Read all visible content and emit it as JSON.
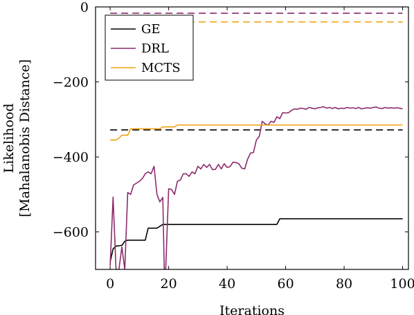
{
  "chart_data": {
    "type": "line",
    "title": "",
    "xlabel": "Iterations",
    "ylabel_lines": [
      "Likelihood",
      "[Mahalanobis Distance]"
    ],
    "xlim": [
      -5,
      102
    ],
    "ylim": [
      -700,
      0
    ],
    "xticks": [
      0,
      20,
      40,
      60,
      80,
      100
    ],
    "yticks": [
      0,
      -200,
      -400,
      -600
    ],
    "ytick_labels": [
      "0",
      "−200",
      "−400",
      "−600"
    ],
    "legend": {
      "position": "top-left"
    },
    "series": [
      {
        "name": "GE",
        "color": "#000000",
        "points": [
          [
            0,
            -680
          ],
          [
            1,
            -645
          ],
          [
            2,
            -638
          ],
          [
            4,
            -636
          ],
          [
            5,
            -625
          ],
          [
            6,
            -622
          ],
          [
            12,
            -622
          ],
          [
            13,
            -590
          ],
          [
            16,
            -590
          ],
          [
            17,
            -585
          ],
          [
            18,
            -580
          ],
          [
            57,
            -580
          ],
          [
            58,
            -565
          ],
          [
            100,
            -565
          ]
        ]
      },
      {
        "name": "DRL",
        "color": "#8b2a6b",
        "points": [
          [
            0,
            -690
          ],
          [
            1,
            -507
          ],
          [
            2,
            -700
          ],
          [
            3,
            -700
          ],
          [
            4,
            -640
          ],
          [
            5,
            -700
          ],
          [
            6,
            -495
          ],
          [
            7,
            -500
          ],
          [
            8,
            -475
          ],
          [
            9,
            -470
          ],
          [
            10,
            -465
          ],
          [
            11,
            -458
          ],
          [
            12,
            -445
          ],
          [
            13,
            -440
          ],
          [
            14,
            -445
          ],
          [
            15,
            -425
          ],
          [
            16,
            -500
          ],
          [
            17,
            -520
          ],
          [
            18,
            -508
          ],
          [
            18.5,
            -700
          ],
          [
            19,
            -700
          ],
          [
            20,
            -485
          ],
          [
            21,
            -487
          ],
          [
            22,
            -500
          ],
          [
            23,
            -465
          ],
          [
            24,
            -462
          ],
          [
            25,
            -445
          ],
          [
            26,
            -445
          ],
          [
            27,
            -452
          ],
          [
            28,
            -440
          ],
          [
            29,
            -445
          ],
          [
            30,
            -425
          ],
          [
            31,
            -432
          ],
          [
            32,
            -420
          ],
          [
            33,
            -428
          ],
          [
            34,
            -420
          ],
          [
            35,
            -434
          ],
          [
            36,
            -433
          ],
          [
            37,
            -420
          ],
          [
            38,
            -432
          ],
          [
            39,
            -418
          ],
          [
            40,
            -428
          ],
          [
            41,
            -426
          ],
          [
            42,
            -414
          ],
          [
            43,
            -415
          ],
          [
            44,
            -418
          ],
          [
            45,
            -430
          ],
          [
            46,
            -432
          ],
          [
            47,
            -406
          ],
          [
            48,
            -390
          ],
          [
            49,
            -388
          ],
          [
            50,
            -355
          ],
          [
            51,
            -345
          ],
          [
            52,
            -305
          ],
          [
            53,
            -312
          ],
          [
            54,
            -315
          ],
          [
            55,
            -305
          ],
          [
            56,
            -308
          ],
          [
            57,
            -293
          ],
          [
            58,
            -298
          ],
          [
            59,
            -282
          ],
          [
            60,
            -283
          ],
          [
            61,
            -282
          ],
          [
            62,
            -276
          ],
          [
            63,
            -272
          ],
          [
            64,
            -273
          ],
          [
            65,
            -270
          ],
          [
            66,
            -271
          ],
          [
            67,
            -273
          ],
          [
            68,
            -268
          ],
          [
            69,
            -270
          ],
          [
            70,
            -272
          ],
          [
            71,
            -269
          ],
          [
            72,
            -268
          ],
          [
            73,
            -266
          ],
          [
            74,
            -270
          ],
          [
            75,
            -268
          ],
          [
            76,
            -271
          ],
          [
            77,
            -268
          ],
          [
            78,
            -272
          ],
          [
            79,
            -270
          ],
          [
            80,
            -271
          ],
          [
            81,
            -268
          ],
          [
            82,
            -270
          ],
          [
            83,
            -269
          ],
          [
            84,
            -271
          ],
          [
            85,
            -268
          ],
          [
            86,
            -272
          ],
          [
            87,
            -270
          ],
          [
            88,
            -269
          ],
          [
            89,
            -270
          ],
          [
            90,
            -268
          ],
          [
            91,
            -267
          ],
          [
            92,
            -270
          ],
          [
            93,
            -271
          ],
          [
            94,
            -268
          ],
          [
            95,
            -270
          ],
          [
            96,
            -269
          ],
          [
            97,
            -270
          ],
          [
            98,
            -269
          ],
          [
            99,
            -270
          ],
          [
            100,
            -272
          ]
        ]
      },
      {
        "name": "MCTS",
        "color": "#f0a20f",
        "points": [
          [
            0,
            -355
          ],
          [
            2,
            -355
          ],
          [
            3,
            -350
          ],
          [
            4,
            -342
          ],
          [
            6,
            -342
          ],
          [
            7,
            -325
          ],
          [
            17,
            -325
          ],
          [
            18,
            -320
          ],
          [
            22,
            -320
          ],
          [
            23,
            -315
          ],
          [
            100,
            -315
          ]
        ]
      }
    ],
    "reference_lines": [
      {
        "series": "GE",
        "y": -328,
        "color": "#000000"
      },
      {
        "series": "DRL",
        "y": -17,
        "color": "#8b2a6b"
      },
      {
        "series": "MCTS",
        "y": -40,
        "color": "#f0a20f"
      }
    ]
  }
}
